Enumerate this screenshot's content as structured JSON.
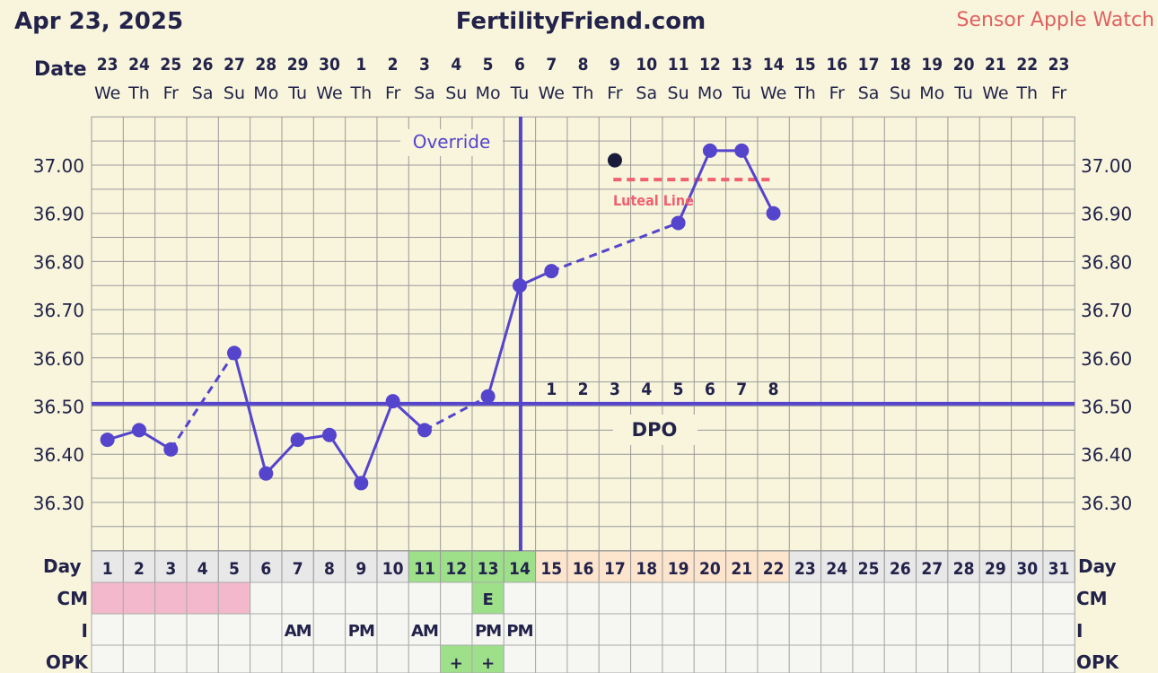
{
  "header": {
    "date": "Apr 23, 2025",
    "site": "FertilityFriend.com",
    "sensor": "Sensor Apple Watch"
  },
  "labels": {
    "date": "Date",
    "day": "Day",
    "cm": "CM",
    "intercourse": "I",
    "opk": "OPK",
    "override": "Override",
    "dpo": "DPO",
    "luteal": "Luteal Line"
  },
  "colors": {
    "line": "#5544cc",
    "luteal": "#f06070",
    "menses": "#f4b8cc",
    "fertile": "#9ee08a",
    "luteal_phase": "#fde4cc",
    "grid": "#9a9a9a",
    "text": "#22224a"
  },
  "chart_data": {
    "type": "line",
    "ylim": [
      36.2,
      37.1
    ],
    "yticks": [
      "37.00",
      "36.90",
      "36.80",
      "36.70",
      "36.60",
      "36.50",
      "36.40",
      "36.30"
    ],
    "dates": [
      "23",
      "24",
      "25",
      "26",
      "27",
      "28",
      "29",
      "30",
      "1",
      "2",
      "3",
      "4",
      "5",
      "6",
      "7",
      "8",
      "9",
      "10",
      "11",
      "12",
      "13",
      "14",
      "15",
      "16",
      "17",
      "18",
      "19",
      "20",
      "21",
      "22",
      "23"
    ],
    "weekdays": [
      "We",
      "Th",
      "Fr",
      "Sa",
      "Su",
      "Mo",
      "Tu",
      "We",
      "Th",
      "Fr",
      "Sa",
      "Su",
      "Mo",
      "Tu",
      "We",
      "Th",
      "Fr",
      "Sa",
      "Su",
      "Mo",
      "Tu",
      "We",
      "Th",
      "Fr",
      "Sa",
      "Su",
      "Mo",
      "Tu",
      "We",
      "Th",
      "Fr"
    ],
    "cycle_days": [
      "1",
      "2",
      "3",
      "4",
      "5",
      "6",
      "7",
      "8",
      "9",
      "10",
      "11",
      "12",
      "13",
      "14",
      "15",
      "16",
      "17",
      "18",
      "19",
      "20",
      "21",
      "22",
      "23",
      "24",
      "25",
      "26",
      "27",
      "28",
      "29",
      "30",
      "31"
    ],
    "temps": [
      {
        "day": 1,
        "temp": 36.43
      },
      {
        "day": 2,
        "temp": 36.45
      },
      {
        "day": 3,
        "temp": 36.41
      },
      {
        "day": 5,
        "temp": 36.61
      },
      {
        "day": 6,
        "temp": 36.36
      },
      {
        "day": 7,
        "temp": 36.43
      },
      {
        "day": 8,
        "temp": 36.44
      },
      {
        "day": 9,
        "temp": 36.34
      },
      {
        "day": 10,
        "temp": 36.51
      },
      {
        "day": 11,
        "temp": 36.45
      },
      {
        "day": 13,
        "temp": 36.52
      },
      {
        "day": 14,
        "temp": 36.75
      },
      {
        "day": 15,
        "temp": 36.78
      },
      {
        "day": 19,
        "temp": 36.88
      },
      {
        "day": 20,
        "temp": 37.03
      },
      {
        "day": 21,
        "temp": 37.03
      },
      {
        "day": 22,
        "temp": 36.9
      }
    ],
    "dashed_segments": [
      [
        3,
        5
      ],
      [
        11,
        13
      ],
      [
        15,
        19
      ]
    ],
    "discarded": [
      {
        "day": 17,
        "temp": 37.01
      }
    ],
    "coverline": 36.505,
    "ovulation_day": 14,
    "luteal_line": {
      "temp": 36.97,
      "from_day": 17,
      "to_day": 22
    },
    "dpo_numbers": [
      "1",
      "2",
      "3",
      "4",
      "5",
      "6",
      "7",
      "8"
    ],
    "dpo_start_day": 15,
    "menses_days": [
      1,
      2,
      3,
      4,
      5
    ],
    "fertile_days": [
      11,
      12,
      13,
      14
    ],
    "luteal_phase_days": [
      15,
      16,
      17,
      18,
      19,
      20,
      21,
      22
    ],
    "cm": [
      {
        "day": 13,
        "value": "E"
      }
    ],
    "intercourse": [
      {
        "day": 7,
        "value": "AM"
      },
      {
        "day": 9,
        "value": "PM"
      },
      {
        "day": 11,
        "value": "AM"
      },
      {
        "day": 13,
        "value": "PM"
      },
      {
        "day": 14,
        "value": "PM"
      }
    ],
    "opk": [
      {
        "day": 12,
        "value": "+"
      },
      {
        "day": 13,
        "value": "+"
      }
    ],
    "legend": "none",
    "grid": true
  }
}
